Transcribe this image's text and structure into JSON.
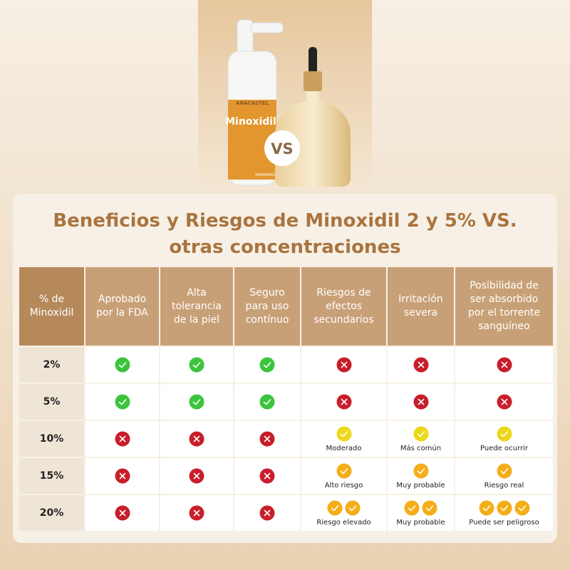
{
  "hero": {
    "brand": "ANACASTEL",
    "product": "Minoxidil",
    "maker": "FARMAPRO",
    "vs": "VS"
  },
  "title": "Beneficios y Riesgos de Minoxidil 2 y 5% VS. otras concentraciones",
  "table": {
    "headers": [
      "% de Minoxidil",
      "Aprobado por la FDA",
      "Alta tolerancia de la piel",
      "Seguro para uso contínuo",
      "Riesgos de efectos secundarios",
      "Irritación severa",
      "Posibilidad de ser absorbido por el torrente sanguíneo"
    ],
    "rows": [
      {
        "label": "2%"
      },
      {
        "label": "5%"
      },
      {
        "label": "10%",
        "notes": [
          "Moderado",
          "Más común",
          "Puede ocurrir"
        ]
      },
      {
        "label": "15%",
        "notes": [
          "Alto riesgo",
          "Muy probable",
          "Riesgo real"
        ]
      },
      {
        "label": "20%",
        "notes": [
          "Riesgo elevado",
          "Muy probable",
          "Puede ser peligroso"
        ]
      }
    ]
  }
}
